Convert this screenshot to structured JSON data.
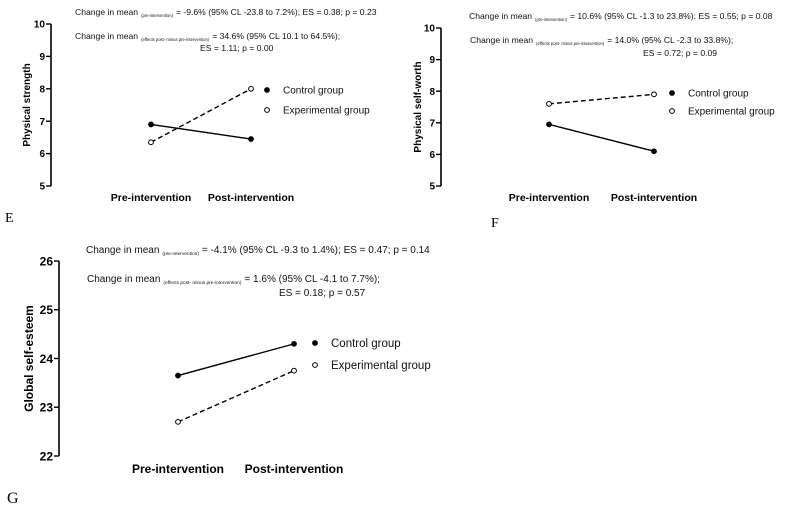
{
  "chart_data": [
    {
      "type": "line",
      "panel_label": "E",
      "ylabel": "Physical strength",
      "categories": [
        "Pre-intervention",
        "Post-intervention"
      ],
      "ylim": [
        5,
        10
      ],
      "yticks": [
        "5",
        "6",
        "7",
        "8",
        "9",
        "10"
      ],
      "grid": false,
      "legend": "right",
      "series": [
        {
          "name": "Control group",
          "values": [
            6.9,
            6.45
          ],
          "marker": "filled-circle",
          "linestyle": "solid"
        },
        {
          "name": "Experimental group",
          "values": [
            6.35,
            8.0
          ],
          "marker": "open-circle",
          "linestyle": "dashed"
        }
      ],
      "annotations": [
        {
          "prefix": "Change in mean",
          "subscript": "(pre-intervention)",
          "text": "= -9.6% (95% CL -23.8 to 7.2%); ES = 0.38; p = 0.23",
          "line2": ""
        },
        {
          "prefix": "Change in mean",
          "subscript": "(effects post-  minus  pre-intervention)",
          "text": "= 34.6% (95% CL 10.1 to 64.5%);",
          "line2": "ES = 1.11; p = 0.00"
        }
      ]
    },
    {
      "type": "line",
      "panel_label": "F",
      "ylabel": "Physical self-worth",
      "categories": [
        "Pre-intervention",
        "Post-intervention"
      ],
      "ylim": [
        5,
        10
      ],
      "yticks": [
        "5",
        "6",
        "7",
        "8",
        "9",
        "10"
      ],
      "grid": false,
      "legend": "right",
      "series": [
        {
          "name": "Control group",
          "values": [
            6.95,
            6.1
          ],
          "marker": "filled-circle",
          "linestyle": "solid"
        },
        {
          "name": "Experimental group",
          "values": [
            7.6,
            7.9
          ],
          "marker": "open-circle",
          "linestyle": "dashed"
        }
      ],
      "annotations": [
        {
          "prefix": "Change in mean",
          "subscript": "(pre-intervention)",
          "text": "= 10.6% (95% CL -1.3 to 23.8%); ES = 0.55; p = 0.08",
          "line2": ""
        },
        {
          "prefix": "Change in mean",
          "subscript": "(effects post-  minus  pre-intervention)",
          "text": "= 14.0% (95% CL -2.3 to 33.8%);",
          "line2": "ES = 0.72; p = 0.09"
        }
      ]
    },
    {
      "type": "line",
      "panel_label": "G",
      "ylabel": "Global self-esteem",
      "categories": [
        "Pre-intervention",
        "Post-intervention"
      ],
      "ylim": [
        22,
        26
      ],
      "yticks": [
        "22",
        "23",
        "24",
        "25",
        "26"
      ],
      "grid": false,
      "legend": "right",
      "series": [
        {
          "name": "Control group",
          "values": [
            23.65,
            24.3
          ],
          "marker": "filled-circle",
          "linestyle": "solid"
        },
        {
          "name": "Experimental group",
          "values": [
            22.7,
            23.75
          ],
          "marker": "open-circle",
          "linestyle": "dashed"
        }
      ],
      "annotations": [
        {
          "prefix": "Change in mean",
          "subscript": "(pre-intervention)",
          "text": "= -4.1% (95% CL -9.3 to 1.4%); ES = 0.47; p = 0.14",
          "line2": ""
        },
        {
          "prefix": "Change in mean",
          "subscript": "(effects post-  minus  pre-intervention)",
          "text": "= 1.6% (95% CL -4.1 to 7.7%);",
          "line2": "ES = 0.18; p = 0.57"
        }
      ]
    }
  ]
}
